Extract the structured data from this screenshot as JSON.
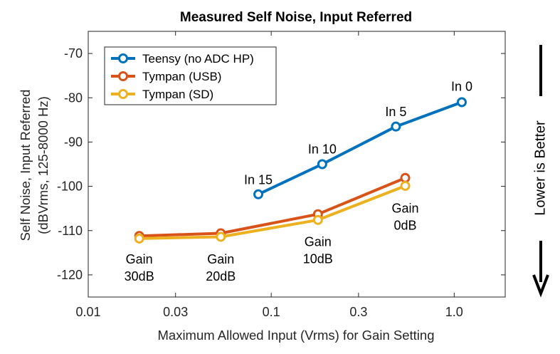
{
  "chart_data": {
    "type": "line",
    "title": "Measured Self Noise, Input Referred",
    "xlabel": "Maximum Allowed Input (Vrms) for Gain Setting",
    "ylabel_line1": "Self Noise, Input Referred",
    "ylabel_line2": "(dBVrms, 125-8000 Hz)",
    "xscale": "log",
    "xlim": [
      0.01,
      1.9
    ],
    "ylim": [
      -125,
      -65
    ],
    "xticks": [
      0.01,
      0.03,
      0.1,
      0.3,
      1.0
    ],
    "xtick_labels": [
      "0.01",
      "0.03",
      "0.1",
      "0.3",
      "1.0"
    ],
    "yticks": [
      -120,
      -110,
      -100,
      -90,
      -80,
      -70
    ],
    "ytick_labels": [
      "-120",
      "-110",
      "-100",
      "-90",
      "-80",
      "-70"
    ],
    "grid": false,
    "legend_position": "top-left",
    "series": [
      {
        "name": "Teensy (no ADC HP)",
        "color": "#0072BD",
        "x": [
          0.085,
          0.19,
          0.48,
          1.1
        ],
        "y": [
          -101.8,
          -95.0,
          -86.5,
          -81.0
        ]
      },
      {
        "name": "Tympan (USB)",
        "color": "#D95319",
        "x": [
          0.019,
          0.053,
          0.18,
          0.54
        ],
        "y": [
          -111.2,
          -110.6,
          -106.3,
          -98.1
        ]
      },
      {
        "name": "Tympan (SD)",
        "color": "#EDB120",
        "x": [
          0.019,
          0.053,
          0.18,
          0.54
        ],
        "y": [
          -111.8,
          -111.4,
          -107.6,
          -99.9
        ]
      }
    ],
    "annotations": [
      {
        "lines": [
          "In 15"
        ],
        "x": 0.085,
        "y": -98.5
      },
      {
        "lines": [
          "In 10"
        ],
        "x": 0.19,
        "y": -91.6
      },
      {
        "lines": [
          "In 5"
        ],
        "x": 0.48,
        "y": -83.2
      },
      {
        "lines": [
          "In 0"
        ],
        "x": 1.1,
        "y": -77.5
      },
      {
        "lines": [
          "Gain",
          "30dB"
        ],
        "x": 0.019,
        "y": -116.5
      },
      {
        "lines": [
          "Gain",
          "20dB"
        ],
        "x": 0.053,
        "y": -116.5
      },
      {
        "lines": [
          "Gain",
          "10dB"
        ],
        "x": 0.18,
        "y": -112.5
      },
      {
        "lines": [
          "Gain",
          "0dB"
        ],
        "x": 0.54,
        "y": -105
      }
    ],
    "side_note": "Lower is Better"
  }
}
